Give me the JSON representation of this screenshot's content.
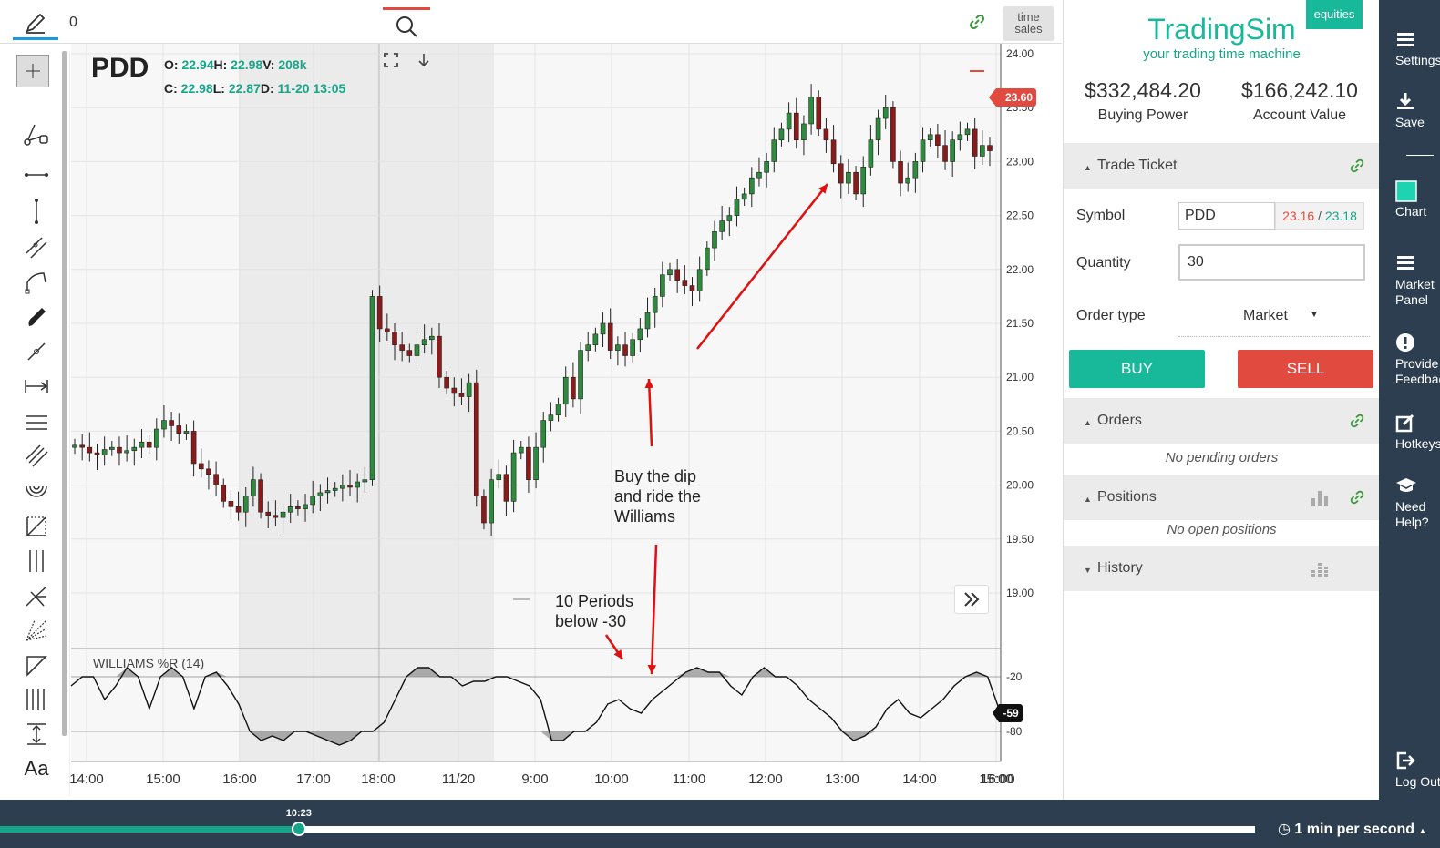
{
  "toolbar": {
    "symbol_input_value": "0",
    "time_sales_label": "time\nsales"
  },
  "chart": {
    "symbol": "PDD",
    "ohlc": {
      "o_label": "O:",
      "o": "22.94",
      "h_label": "H:",
      "h": "22.98",
      "v_label": "V:",
      "v": "208k",
      "c_label": "C:",
      "c": "22.98",
      "l_label": "L:",
      "l": "22.87",
      "d_label": "D:",
      "d": "11-20 13:05"
    },
    "last_price_tag": "23.60",
    "indicator_title": "WILLIAMS %R (14)",
    "indicator_value_tag": "-59",
    "annotation_dip": "Buy the dip\nand ride the\nWilliams",
    "annotation_periods": "10 Periods\nbelow -30",
    "colors": {
      "up": "#2e8b3e",
      "down": "#8b1a1a",
      "accent_red": "#e04a3f",
      "accent_teal": "#17a589"
    }
  },
  "chart_data": {
    "type": "candlestick",
    "title": "PDD",
    "xlabel": "",
    "ylabel": "",
    "x_ticks": [
      "14:00",
      "15:00",
      "16:00",
      "17:00",
      "18:00",
      "11/20",
      "9:00",
      "10:00",
      "11:00",
      "12:00",
      "13:00",
      "14:00",
      "15:00",
      "16:00"
    ],
    "y_ticks": [
      19.0,
      19.5,
      20.0,
      20.5,
      21.0,
      21.5,
      22.0,
      22.5,
      23.0,
      23.5,
      24.0
    ],
    "ylim": [
      18.5,
      24.0
    ],
    "series": [
      {
        "name": "PDD",
        "values": [
          20.37,
          20.35,
          20.3,
          20.28,
          20.33,
          20.35,
          20.3,
          20.32,
          20.35,
          20.4,
          20.35,
          20.52,
          20.6,
          20.55,
          20.48,
          20.5,
          20.2,
          20.15,
          20.1,
          20.0,
          19.85,
          19.8,
          19.75,
          19.9,
          20.05,
          19.75,
          19.72,
          19.7,
          19.75,
          19.8,
          19.78,
          19.82,
          19.9,
          19.93,
          19.95,
          19.97,
          20.0,
          19.98,
          20.03,
          20.05,
          21.75,
          21.45,
          21.42,
          21.3,
          21.25,
          21.2,
          21.3,
          21.35,
          21.38,
          21.0,
          20.9,
          20.85,
          20.82,
          20.95,
          19.9,
          19.65,
          20.05,
          20.1,
          19.85,
          20.3,
          20.35,
          20.05,
          20.35,
          20.6,
          20.65,
          20.75,
          21.0,
          20.8,
          21.25,
          21.3,
          21.4,
          21.5,
          21.25,
          21.3,
          21.2,
          21.35,
          21.45,
          21.6,
          21.75,
          21.95,
          22.0,
          21.9,
          21.85,
          21.8,
          22.0,
          22.2,
          22.35,
          22.45,
          22.5,
          22.65,
          22.7,
          22.85,
          22.9,
          23.0,
          23.2,
          23.3,
          23.45,
          23.2,
          23.35,
          23.6,
          23.3,
          23.2,
          22.98,
          22.8,
          22.9,
          22.7,
          22.95,
          23.2,
          23.4,
          23.5,
          23.0,
          22.8,
          22.85,
          23.0,
          23.2,
          23.25,
          23.15,
          23.0,
          23.2,
          23.25,
          23.3,
          23.05,
          23.15,
          23.1
        ]
      },
      {
        "name": "WILLIAMS %R (14)",
        "values": [
          -30,
          -20,
          -20,
          -45,
          -30,
          -10,
          -20,
          -55,
          -20,
          -10,
          -20,
          -55,
          -20,
          -15,
          -30,
          -50,
          -80,
          -90,
          -85,
          -90,
          -80,
          -80,
          -85,
          -90,
          -95,
          -90,
          -80,
          -80,
          -70,
          -45,
          -20,
          -10,
          -10,
          -20,
          -20,
          -30,
          -25,
          -25,
          -20,
          -20,
          -25,
          -30,
          -45,
          -90,
          -90,
          -80,
          -80,
          -70,
          -50,
          -45,
          -55,
          -60,
          -45,
          -35,
          -25,
          -15,
          -10,
          -15,
          -15,
          -30,
          -40,
          -20,
          -10,
          -20,
          -20,
          -30,
          -45,
          -55,
          -65,
          -80,
          -90,
          -85,
          -75,
          -55,
          -45,
          -60,
          -65,
          -55,
          -45,
          -30,
          -20,
          -15,
          -20,
          -55
        ]
      }
    ]
  },
  "panel": {
    "badge": "equities",
    "brand": "TradingSim",
    "tagline": "your trading time machine",
    "buying_power": "$332,484.20",
    "buying_power_label": "Buying Power",
    "account_value": "$166,242.10",
    "account_value_label": "Account Value",
    "trade_ticket_title": "Trade Ticket",
    "symbol_label": "Symbol",
    "symbol_value": "PDD",
    "bid": "23.16",
    "slash": "/",
    "ask": "23.18",
    "quantity_label": "Quantity",
    "quantity_value": "30",
    "order_type_label": "Order type",
    "order_type_value": "Market",
    "buy_label": "BUY",
    "sell_label": "SELL",
    "orders_title": "Orders",
    "orders_empty": "No pending orders",
    "positions_title": "Positions",
    "positions_empty": "No open positions",
    "history_title": "History"
  },
  "nav": {
    "settings": "Settings",
    "save": "Save",
    "chart": "Chart",
    "market_panel": "Market\nPanel",
    "feedback": "Provide\nFeedback",
    "hotkeys": "Hotkeys",
    "help": "Need\nHelp?",
    "logout": "Log Out"
  },
  "playback": {
    "current_time": "10:23",
    "progress": 0.238,
    "speed": "1 min per second"
  }
}
